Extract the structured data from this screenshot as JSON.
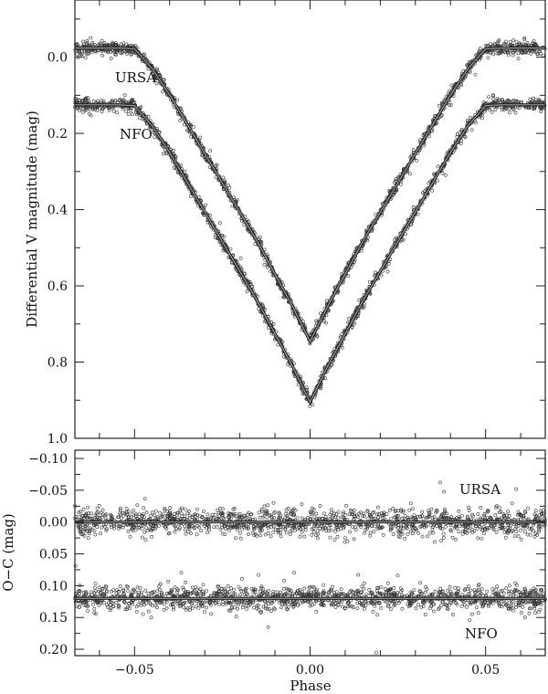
{
  "chart_data": [
    {
      "type": "scatter",
      "panel": "light curve",
      "xlabel": "",
      "ylabel": "Differential V magnitude (mag)",
      "xlim": [
        -0.067,
        0.067
      ],
      "ylim": [
        -0.15,
        1.0
      ],
      "y_inverted": true,
      "x_ticks": [
        -0.05,
        0.0,
        0.05
      ],
      "y_ticks": [
        0.0,
        0.2,
        0.4,
        0.6,
        0.8,
        1.0
      ],
      "y_tick_labels": [
        "0.0",
        "0.2",
        "0.4",
        "0.6",
        "0.8",
        "1.0"
      ],
      "grid": false,
      "marker": "open-circle",
      "model_line_color": "#9a9a9a",
      "series": [
        {
          "name": "URSA",
          "model_phase": [
            -0.07,
            -0.065,
            -0.06,
            -0.055,
            -0.05,
            -0.045,
            -0.04,
            -0.035,
            -0.03,
            -0.025,
            -0.02,
            -0.015,
            -0.01,
            -0.005,
            0.0,
            0.005,
            0.01,
            0.015,
            0.02,
            0.025,
            0.03,
            0.035,
            0.04,
            0.045,
            0.05,
            0.055,
            0.06,
            0.065,
            0.07
          ],
          "model_mag": [
            -0.024,
            -0.024,
            -0.024,
            -0.024,
            -0.022,
            0.03,
            0.099,
            0.176,
            0.253,
            0.33,
            0.407,
            0.484,
            0.569,
            0.654,
            0.746,
            0.654,
            0.569,
            0.484,
            0.407,
            0.33,
            0.253,
            0.176,
            0.099,
            0.03,
            -0.022,
            -0.024,
            -0.024,
            -0.024,
            -0.024
          ],
          "scatter_mag": 0.008
        },
        {
          "name": "NFO",
          "model_phase": [
            -0.07,
            -0.065,
            -0.06,
            -0.055,
            -0.05,
            -0.045,
            -0.04,
            -0.035,
            -0.03,
            -0.025,
            -0.02,
            -0.015,
            -0.01,
            -0.005,
            0.0,
            0.005,
            0.01,
            0.015,
            0.02,
            0.025,
            0.03,
            0.035,
            0.04,
            0.045,
            0.05,
            0.055,
            0.06,
            0.065,
            0.07
          ],
          "model_mag": [
            0.125,
            0.125,
            0.125,
            0.125,
            0.127,
            0.18,
            0.25,
            0.328,
            0.406,
            0.484,
            0.562,
            0.64,
            0.726,
            0.811,
            0.905,
            0.811,
            0.726,
            0.64,
            0.562,
            0.484,
            0.406,
            0.328,
            0.25,
            0.18,
            0.127,
            0.125,
            0.125,
            0.125,
            0.125
          ],
          "scatter_mag": 0.008
        }
      ]
    },
    {
      "type": "scatter",
      "panel": "residuals",
      "xlabel": "Phase",
      "ylabel": "O−C (mag)",
      "xlim": [
        -0.067,
        0.067
      ],
      "ylim": [
        -0.113,
        0.21
      ],
      "y_inverted": true,
      "x_ticks": [
        -0.05,
        0.0,
        0.05
      ],
      "x_tick_labels": [
        "−0.05",
        "0.00",
        "0.05"
      ],
      "y_ticks": [
        -0.1,
        -0.05,
        0.0,
        0.05,
        0.1,
        0.15,
        0.2
      ],
      "y_tick_labels": [
        "−0.10",
        "−0.05",
        "0.00",
        "0.05",
        "0.10",
        "0.15",
        "0.20"
      ],
      "grid": false,
      "marker": "open-circle",
      "series": [
        {
          "name": "URSA",
          "offset": 0.0,
          "scatter_mag": 0.01
        },
        {
          "name": "NFO",
          "offset": 0.12,
          "scatter_mag": 0.009
        }
      ]
    }
  ]
}
